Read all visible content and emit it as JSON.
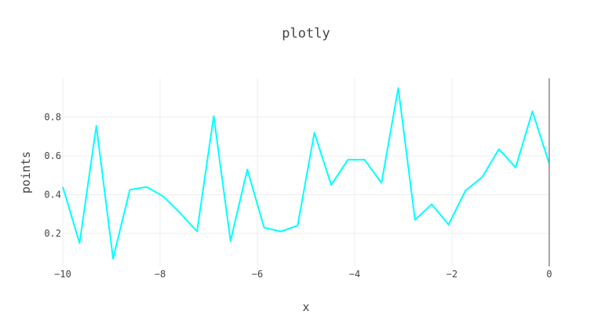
{
  "chart_data": {
    "type": "line",
    "title": "plotly",
    "xlabel": "x",
    "ylabel": "points",
    "xlim": [
      -10,
      0
    ],
    "ylim": [
      0.03,
      1.0
    ],
    "grid": true,
    "x_ticks": [
      -10,
      -8,
      -6,
      -4,
      -2,
      0
    ],
    "x_tick_labels": [
      "−10",
      "−8",
      "−6",
      "−4",
      "−2",
      "0"
    ],
    "y_ticks": [
      0.2,
      0.4,
      0.6,
      0.8
    ],
    "y_tick_labels": [
      "0.2",
      "0.4",
      "0.6",
      "0.8"
    ],
    "line_color": "#00ffff",
    "series": [
      {
        "x": [
          -10,
          -9.655,
          -9.31,
          -8.966,
          -8.621,
          -8.276,
          -7.931,
          -7.586,
          -7.241,
          -6.897,
          -6.552,
          -6.207,
          -5.862,
          -5.517,
          -5.172,
          -4.828,
          -4.483,
          -4.138,
          -3.793,
          -3.448,
          -3.103,
          -2.759,
          -2.414,
          -2.069,
          -1.724,
          -1.379,
          -1.034,
          -0.69,
          -0.345,
          0
        ],
        "y": [
          0.44,
          0.15,
          0.755,
          0.07,
          0.425,
          0.44,
          0.39,
          0.305,
          0.21,
          0.805,
          0.16,
          0.53,
          0.23,
          0.21,
          0.24,
          0.72,
          0.45,
          0.58,
          0.58,
          0.46,
          0.95,
          0.27,
          0.35,
          0.245,
          0.42,
          0.49,
          0.635,
          0.54,
          0.83,
          0.56
        ]
      }
    ]
  }
}
